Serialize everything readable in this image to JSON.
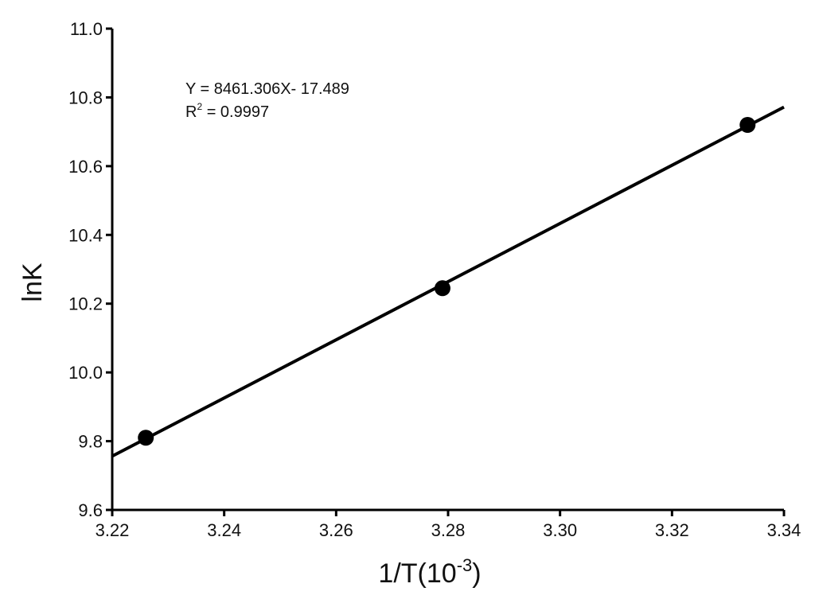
{
  "chart_data": {
    "type": "scatter",
    "x": [
      3.226,
      3.279,
      3.3335
    ],
    "y": [
      9.81,
      10.245,
      10.72
    ],
    "fit_line": {
      "slope": 8.461306,
      "intercept": -17.489
    },
    "xlim": [
      3.22,
      3.34
    ],
    "ylim": [
      9.6,
      11.0
    ],
    "xticks": [
      "3.22",
      "3.24",
      "3.26",
      "3.28",
      "3.30",
      "3.32",
      "3.34"
    ],
    "yticks": [
      "9.6",
      "9.8",
      "10.0",
      "10.2",
      "10.4",
      "10.6",
      "10.8",
      "11.0"
    ],
    "xlabel": {
      "main": "1/T(10",
      "sup": "-3",
      "close": ")"
    },
    "ylabel": "lnK",
    "annotation": {
      "equation": "Y = 8461.306X- 17.489",
      "r2_prefix": "R",
      "r2_sup": "2",
      "r2_value": " = 0.9997"
    },
    "grid": false,
    "color": "#000000"
  }
}
